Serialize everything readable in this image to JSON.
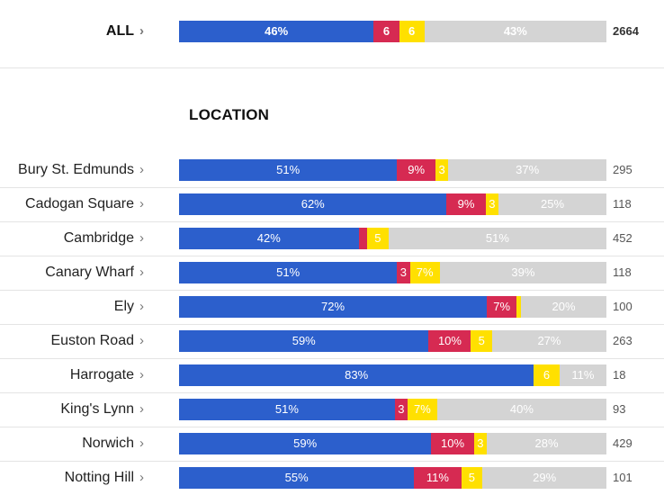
{
  "section_title": "LOCATION",
  "colors": {
    "blue": "#2c5fcc",
    "red": "#d62a52",
    "yellow": "#ffe000",
    "grey": "#d4d4d4"
  },
  "chart_data": {
    "type": "bar",
    "orientation": "horizontal-stacked-100",
    "grid": false,
    "legend": "none",
    "all": {
      "label": "ALL",
      "values": [
        46,
        6,
        6,
        43
      ],
      "labels": [
        "46%",
        "6",
        "6",
        "43%"
      ],
      "count": "2664"
    },
    "rows": [
      {
        "label": "Bury St. Edmunds",
        "values": [
          51,
          9,
          3,
          37
        ],
        "labels": [
          "51%",
          "9%",
          "3",
          "37%"
        ],
        "count": "295"
      },
      {
        "label": "Cadogan Square",
        "values": [
          62,
          9,
          3,
          25
        ],
        "labels": [
          "62%",
          "9%",
          "3",
          "25%"
        ],
        "count": "118"
      },
      {
        "label": "Cambridge",
        "values": [
          42,
          2,
          5,
          51
        ],
        "labels": [
          "42%",
          "",
          "5",
          "51%"
        ],
        "count": "452"
      },
      {
        "label": "Canary Wharf",
        "values": [
          51,
          3,
          7,
          39
        ],
        "labels": [
          "51%",
          "3",
          "7%",
          "39%"
        ],
        "count": "118"
      },
      {
        "label": "Ely",
        "values": [
          72,
          7,
          1,
          20
        ],
        "labels": [
          "72%",
          "7%",
          "",
          "20%"
        ],
        "count": "100"
      },
      {
        "label": "Euston Road",
        "values": [
          59,
          10,
          5,
          27
        ],
        "labels": [
          "59%",
          "10%",
          "5",
          "27%"
        ],
        "count": "263"
      },
      {
        "label": "Harrogate",
        "values": [
          83,
          0,
          6,
          11
        ],
        "labels": [
          "83%",
          "",
          "6",
          "11%"
        ],
        "count": "18"
      },
      {
        "label": "King's Lynn",
        "values": [
          51,
          3,
          7,
          40
        ],
        "labels": [
          "51%",
          "3",
          "7%",
          "40%"
        ],
        "count": "93"
      },
      {
        "label": "Norwich",
        "values": [
          59,
          10,
          3,
          28
        ],
        "labels": [
          "59%",
          "10%",
          "3",
          "28%"
        ],
        "count": "429"
      },
      {
        "label": "Notting Hill",
        "values": [
          55,
          11,
          5,
          29
        ],
        "labels": [
          "55%",
          "11%",
          "5",
          "29%"
        ],
        "count": "101"
      }
    ]
  }
}
